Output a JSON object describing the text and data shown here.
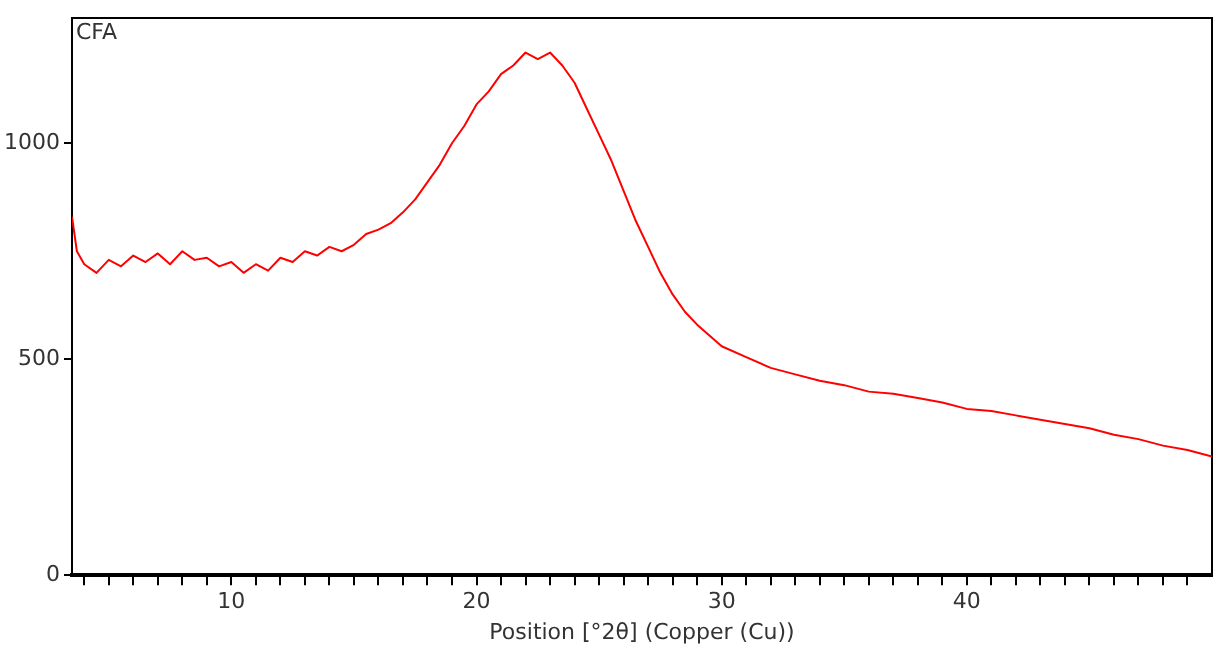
{
  "chart_data": {
    "type": "line",
    "title": "CFA",
    "xlabel": "Position [°2θ] (Copper (Cu))",
    "xlim": [
      3.5,
      50
    ],
    "ylim": [
      0,
      1290
    ],
    "xticks": [
      {
        "value": 4,
        "label": null
      },
      {
        "value": 5,
        "label": null
      },
      {
        "value": 6,
        "label": null
      },
      {
        "value": 7,
        "label": null
      },
      {
        "value": 8,
        "label": null
      },
      {
        "value": 9,
        "label": null
      },
      10,
      {
        "value": 11,
        "label": null
      },
      {
        "value": 12,
        "label": null
      },
      {
        "value": 13,
        "label": null
      },
      {
        "value": 14,
        "label": null
      },
      {
        "value": 15,
        "label": null
      },
      {
        "value": 16,
        "label": null
      },
      {
        "value": 17,
        "label": null
      },
      {
        "value": 18,
        "label": null
      },
      {
        "value": 19,
        "label": null
      },
      20,
      {
        "value": 21,
        "label": null
      },
      {
        "value": 22,
        "label": null
      },
      {
        "value": 23,
        "label": null
      },
      {
        "value": 24,
        "label": null
      },
      {
        "value": 25,
        "label": null
      },
      {
        "value": 26,
        "label": null
      },
      {
        "value": 27,
        "label": null
      },
      {
        "value": 28,
        "label": null
      },
      {
        "value": 29,
        "label": null
      },
      30,
      {
        "value": 31,
        "label": null
      },
      {
        "value": 32,
        "label": null
      },
      {
        "value": 33,
        "label": null
      },
      {
        "value": 34,
        "label": null
      },
      {
        "value": 35,
        "label": null
      },
      {
        "value": 36,
        "label": null
      },
      {
        "value": 37,
        "label": null
      },
      {
        "value": 38,
        "label": null
      },
      {
        "value": 39,
        "label": null
      },
      40,
      {
        "value": 41,
        "label": null
      },
      {
        "value": 42,
        "label": null
      },
      {
        "value": 43,
        "label": null
      },
      {
        "value": 44,
        "label": null
      },
      {
        "value": 45,
        "label": null
      },
      {
        "value": 46,
        "label": null
      },
      {
        "value": 47,
        "label": null
      },
      {
        "value": 48,
        "label": null
      },
      {
        "value": 49,
        "label": null
      }
    ],
    "yticks": [
      0,
      500,
      1000
    ],
    "grid": false,
    "legend": false,
    "marker": "none",
    "line_style": "solid",
    "series": [
      {
        "color": "#ff0000",
        "x": [
          3.5,
          3.7,
          4,
          4.5,
          5,
          5.5,
          6,
          6.5,
          7,
          7.5,
          8,
          8.5,
          9,
          9.5,
          10,
          10.5,
          11,
          11.5,
          12,
          12.5,
          13,
          13.5,
          14,
          14.5,
          15,
          15.5,
          16,
          16.5,
          17,
          17.5,
          18,
          18.5,
          19,
          19.5,
          20,
          20.5,
          21,
          21.5,
          22,
          22.5,
          23,
          23.5,
          24,
          24.5,
          25,
          25.5,
          26,
          26.5,
          27,
          27.5,
          28,
          28.5,
          29,
          29.5,
          30,
          31,
          32,
          33,
          34,
          35,
          36,
          37,
          38,
          39,
          40,
          41,
          42,
          43,
          44,
          45,
          46,
          47,
          48,
          49,
          50
        ],
        "values": [
          830,
          750,
          720,
          700,
          730,
          715,
          740,
          725,
          745,
          720,
          750,
          730,
          735,
          715,
          725,
          700,
          720,
          705,
          735,
          725,
          750,
          740,
          760,
          750,
          765,
          790,
          800,
          815,
          840,
          870,
          910,
          950,
          1000,
          1040,
          1090,
          1120,
          1160,
          1180,
          1210,
          1195,
          1210,
          1180,
          1140,
          1080,
          1020,
          960,
          890,
          820,
          760,
          700,
          650,
          610,
          580,
          555,
          530,
          505,
          480,
          465,
          450,
          440,
          425,
          420,
          410,
          400,
          385,
          380,
          370,
          360,
          350,
          340,
          325,
          315,
          300,
          290,
          275
        ]
      }
    ]
  }
}
